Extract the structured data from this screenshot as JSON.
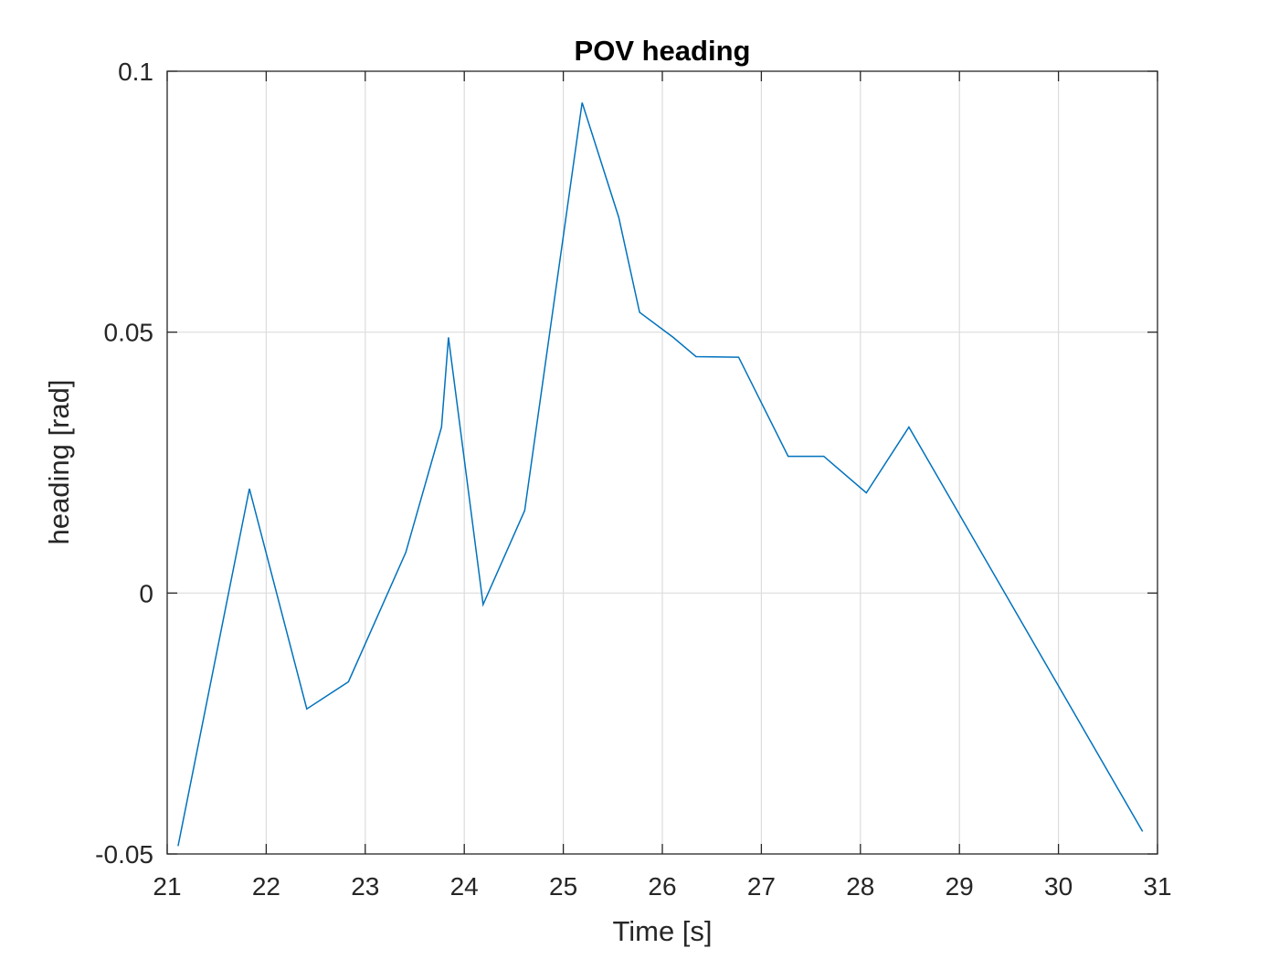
{
  "chart_data": {
    "type": "line",
    "title": "POV heading",
    "xlabel": "Time [s]",
    "ylabel": "heading [rad]",
    "xlim": [
      21,
      31
    ],
    "ylim": [
      -0.05,
      0.1
    ],
    "xticks": [
      21,
      22,
      23,
      24,
      25,
      26,
      27,
      28,
      29,
      30,
      31
    ],
    "xtick_labels": [
      "21",
      "22",
      "23",
      "24",
      "25",
      "26",
      "27",
      "28",
      "29",
      "30",
      "31"
    ],
    "yticks": [
      -0.05,
      0,
      0.05,
      0.1
    ],
    "ytick_labels": [
      "-0.05",
      "0",
      "0.05",
      "0.1"
    ],
    "grid": true,
    "colors": {
      "line": "#0072BD",
      "grid": "#dcdcdc",
      "axes": "#262626"
    },
    "series": [
      {
        "x": [
          21.11,
          21.83,
          22.41,
          22.83,
          23.41,
          23.77,
          23.84,
          24.19,
          24.61,
          25.19,
          25.56,
          25.77,
          26.11,
          26.34,
          26.77,
          27.27,
          27.63,
          28.06,
          28.49,
          30.85
        ],
        "y": [
          -0.0485,
          0.02,
          -0.0222,
          -0.017,
          0.0078,
          0.0318,
          0.049,
          -0.0022,
          0.0158,
          0.094,
          0.072,
          0.0538,
          0.049,
          0.0453,
          0.0452,
          0.0262,
          0.0262,
          0.0192,
          0.0318,
          -0.0457
        ]
      }
    ]
  }
}
